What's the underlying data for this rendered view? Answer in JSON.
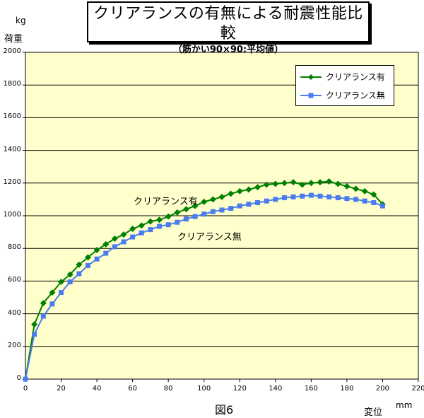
{
  "title": "クリアランスの有無による耐震性能比較",
  "subtitle": "（筋かい90×90:平均値）",
  "y_unit": "kg",
  "ylabel": "荷重",
  "x_unit": "mm",
  "xlabel": "変位",
  "caption": "図6",
  "annotations": [
    "クリアランス有",
    "クリアランス無"
  ],
  "colors": {
    "plot_bg": "#ffffcc",
    "series_green": "#008000",
    "series_blue": "#4a7cf0",
    "grid": "#000000"
  },
  "chart_data": {
    "type": "line",
    "title": "クリアランスの有無による耐震性能比較",
    "subtitle": "（筋かい90×90:平均値）",
    "xlabel": "変位",
    "ylabel": "荷重",
    "xlim": [
      0,
      220
    ],
    "ylim": [
      0,
      2000
    ],
    "xticks": [
      0,
      20,
      40,
      60,
      80,
      100,
      120,
      140,
      160,
      180,
      200,
      220
    ],
    "yticks": [
      0,
      200,
      400,
      600,
      800,
      1000,
      1200,
      1400,
      1600,
      1800,
      2000
    ],
    "grid": "horizontal",
    "legend_position": "top-right",
    "x": [
      0,
      5,
      10,
      15,
      20,
      25,
      30,
      35,
      40,
      45,
      50,
      55,
      60,
      65,
      70,
      75,
      80,
      85,
      90,
      95,
      100,
      105,
      110,
      115,
      120,
      125,
      130,
      135,
      140,
      145,
      150,
      155,
      160,
      165,
      170,
      175,
      180,
      185,
      190,
      195,
      200
    ],
    "series": [
      {
        "name": "クリアランス有",
        "color": "#008000",
        "marker": "diamond",
        "values": [
          0,
          335,
          465,
          530,
          595,
          640,
          700,
          745,
          790,
          825,
          860,
          885,
          920,
          940,
          965,
          975,
          995,
          1020,
          1040,
          1060,
          1085,
          1100,
          1115,
          1135,
          1150,
          1160,
          1175,
          1190,
          1195,
          1200,
          1205,
          1190,
          1200,
          1205,
          1210,
          1195,
          1180,
          1165,
          1150,
          1130,
          1070
        ]
      },
      {
        "name": "クリアランス無",
        "color": "#4a7cf0",
        "marker": "square",
        "values": [
          0,
          275,
          385,
          460,
          530,
          595,
          645,
          695,
          735,
          770,
          810,
          840,
          870,
          895,
          915,
          935,
          945,
          960,
          980,
          995,
          1010,
          1025,
          1035,
          1045,
          1060,
          1070,
          1080,
          1090,
          1100,
          1110,
          1115,
          1120,
          1125,
          1120,
          1115,
          1110,
          1105,
          1100,
          1090,
          1080,
          1060
        ]
      }
    ]
  }
}
